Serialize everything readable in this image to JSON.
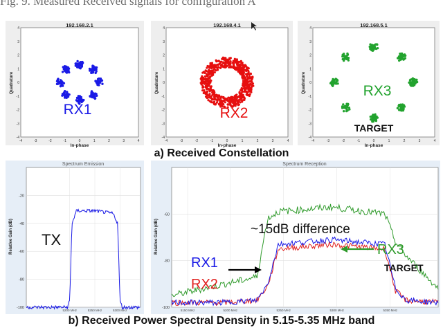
{
  "figure_caption": "Fig. 9.  Measured Received signals for configuration A",
  "constellation": {
    "caption": "a) Received Constellation",
    "xlabel": "In-phase",
    "ylabel": "Quadrature",
    "ticks": [
      "-4",
      "-3",
      "-2",
      "-1",
      "0",
      "1",
      "2",
      "3",
      "4"
    ],
    "panels": [
      {
        "title": "192.168.2.1",
        "label": "RX1",
        "color": "#1a1ae6",
        "pattern": "8-point-ring"
      },
      {
        "title": "192.168.4.1",
        "label": "RX2",
        "color": "#e60f0f",
        "pattern": "noisy-ring"
      },
      {
        "title": "192.168.5.1",
        "label": "RX3",
        "sublabel": "TARGET",
        "color": "#22a32e",
        "pattern": "8-point-ring-wide"
      }
    ]
  },
  "psd": {
    "caption": "b) Received Power Spectral Density in 5.15-5.35 MHz band",
    "ylabel": "Relative Gain (dB)",
    "left": {
      "title": "Spectrum Emission",
      "label": "TX",
      "yticks": [
        "-20",
        "-40",
        "-60",
        "-80",
        "-100"
      ],
      "xticks": [
        "5200 MHz",
        "5250 MHz",
        "5300 MHz"
      ]
    },
    "right": {
      "title": "Spectrum Reception",
      "annotation": "~15dB difference",
      "yticks": [
        "-60",
        "-80",
        "-100"
      ],
      "xticks": [
        "5150 MHz",
        "5200 MHz",
        "5250 MHz",
        "5300 MHz",
        "5350 MHz"
      ],
      "labels": {
        "rx1": "RX1",
        "rx2": "RX2",
        "rx3": "RX3",
        "target": "TARGET"
      },
      "colors": {
        "rx1": "#1a1ae6",
        "rx2": "#e0201e",
        "rx3": "#2e9a2a"
      }
    }
  },
  "chart_data": [
    {
      "type": "scatter",
      "title": "192.168.2.1",
      "xlabel": "In-phase",
      "ylabel": "Quadrature",
      "xlim": [
        -4,
        4
      ],
      "ylim": [
        -4,
        4
      ],
      "series": [
        {
          "name": "RX1",
          "points": [
            [
              1.3,
              0
            ],
            [
              0.92,
              0.92
            ],
            [
              0,
              1.3
            ],
            [
              -0.92,
              0.92
            ],
            [
              -1.3,
              0
            ],
            [
              -0.92,
              -0.92
            ],
            [
              0,
              -1.3
            ],
            [
              0.92,
              -0.92
            ]
          ]
        }
      ]
    },
    {
      "type": "scatter",
      "title": "192.168.4.1",
      "xlabel": "In-phase",
      "ylabel": "Quadrature",
      "xlim": [
        -4,
        4
      ],
      "ylim": [
        -4,
        4
      ],
      "series": [
        {
          "name": "RX2",
          "points": "ring radius 1.4"
        }
      ]
    },
    {
      "type": "scatter",
      "title": "192.168.5.1",
      "xlabel": "In-phase",
      "ylabel": "Quadrature",
      "xlim": [
        -4,
        4
      ],
      "ylim": [
        -4,
        4
      ],
      "series": [
        {
          "name": "RX3",
          "points": [
            [
              2.6,
              0
            ],
            [
              1.84,
              1.84
            ],
            [
              0,
              2.6
            ],
            [
              -1.84,
              1.84
            ],
            [
              -2.6,
              0
            ],
            [
              -1.84,
              -1.84
            ],
            [
              0,
              -2.6
            ],
            [
              1.84,
              -1.84
            ]
          ]
        }
      ]
    },
    {
      "type": "line",
      "title": "Spectrum Emission",
      "ylabel": "Relative Gain (dB)",
      "x": [
        5150,
        5200,
        5240,
        5245,
        5250,
        5260,
        5300,
        5340,
        5350,
        5355,
        5360,
        5400
      ],
      "ylim": [
        -100,
        0
      ],
      "series": [
        {
          "name": "TX",
          "values": [
            -100,
            -100,
            -100,
            -95,
            -40,
            -31,
            -31,
            -33,
            -40,
            -95,
            -100,
            -100
          ]
        }
      ]
    },
    {
      "type": "line",
      "title": "Spectrum Reception",
      "ylabel": "Relative Gain (dB)",
      "x": [
        5150,
        5200,
        5230,
        5240,
        5250,
        5300,
        5350,
        5360,
        5370,
        5400
      ],
      "ylim": [
        -100,
        -40
      ],
      "series": [
        {
          "name": "RX3",
          "values": [
            -95,
            -90,
            -87,
            -62,
            -59,
            -57,
            -60,
            -72,
            -78,
            -92
          ]
        },
        {
          "name": "RX1",
          "values": [
            -98,
            -98,
            -97,
            -90,
            -73,
            -71,
            -73,
            -92,
            -97,
            -98
          ]
        },
        {
          "name": "RX2",
          "values": [
            -98,
            -98,
            -97,
            -91,
            -75,
            -73,
            -75,
            -93,
            -97,
            -98
          ]
        }
      ]
    }
  ]
}
